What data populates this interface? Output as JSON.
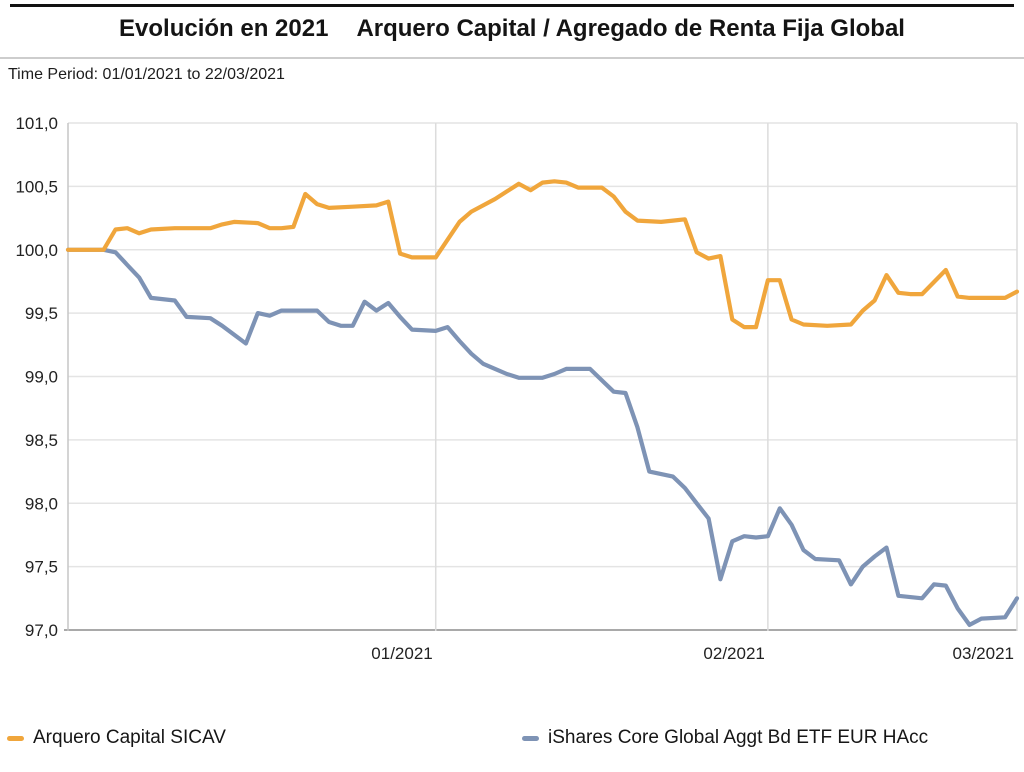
{
  "header": {
    "title_left": "Evolución en 2021",
    "title_right": "Arquero Capital / Agregado de Renta Fija Global"
  },
  "subtitle": {
    "label": "Time Period: 01/01/2021 to 22/03/2021"
  },
  "chart_data": {
    "type": "line",
    "title": "Evolución en 2021  Arquero Capital / Agregado de Renta Fija Global",
    "xlabel": "",
    "ylabel": "",
    "x_start_date": "01/01/2021",
    "x_end_date": "22/03/2021",
    "x_range_days": [
      0,
      80
    ],
    "ylim": [
      97.0,
      101.0
    ],
    "grid": true,
    "legend_position": "bottom",
    "y_ticks": [
      {
        "value": 101.0,
        "label": "101,0"
      },
      {
        "value": 100.5,
        "label": "100,5"
      },
      {
        "value": 100.0,
        "label": "100,0"
      },
      {
        "value": 99.5,
        "label": "99,5"
      },
      {
        "value": 99.0,
        "label": "99,0"
      },
      {
        "value": 98.5,
        "label": "98,5"
      },
      {
        "value": 98.0,
        "label": "98,0"
      },
      {
        "value": 97.5,
        "label": "97,5"
      },
      {
        "value": 97.0,
        "label": "97,0"
      }
    ],
    "x_ticks": [
      {
        "day": 31,
        "label": "01/2021"
      },
      {
        "day": 59,
        "label": "02/2021"
      },
      {
        "day": 80,
        "label": "03/2021"
      }
    ],
    "series": [
      {
        "name": "Arquero Capital SICAV",
        "color": "#F0A63C",
        "points": [
          [
            0,
            100.0
          ],
          [
            3,
            100.0
          ],
          [
            4,
            100.16
          ],
          [
            5,
            100.17
          ],
          [
            6,
            100.13
          ],
          [
            7,
            100.16
          ],
          [
            9,
            100.17
          ],
          [
            12,
            100.17
          ],
          [
            13,
            100.2
          ],
          [
            14,
            100.22
          ],
          [
            16,
            100.21
          ],
          [
            17,
            100.17
          ],
          [
            18,
            100.17
          ],
          [
            19,
            100.18
          ],
          [
            20,
            100.44
          ],
          [
            21,
            100.36
          ],
          [
            22,
            100.33
          ],
          [
            24,
            100.34
          ],
          [
            26,
            100.35
          ],
          [
            27,
            100.38
          ],
          [
            28,
            99.97
          ],
          [
            29,
            99.94
          ],
          [
            31,
            99.94
          ],
          [
            33,
            100.22
          ],
          [
            34,
            100.3
          ],
          [
            36,
            100.4
          ],
          [
            37,
            100.46
          ],
          [
            38,
            100.52
          ],
          [
            39,
            100.47
          ],
          [
            40,
            100.53
          ],
          [
            41,
            100.54
          ],
          [
            42,
            100.53
          ],
          [
            43,
            100.49
          ],
          [
            45,
            100.49
          ],
          [
            46,
            100.42
          ],
          [
            47,
            100.3
          ],
          [
            48,
            100.23
          ],
          [
            50,
            100.22
          ],
          [
            51,
            100.23
          ],
          [
            52,
            100.24
          ],
          [
            53,
            99.98
          ],
          [
            54,
            99.93
          ],
          [
            55,
            99.95
          ],
          [
            56,
            99.45
          ],
          [
            57,
            99.39
          ],
          [
            58,
            99.39
          ],
          [
            59,
            99.76
          ],
          [
            60,
            99.76
          ],
          [
            61,
            99.45
          ],
          [
            62,
            99.41
          ],
          [
            64,
            99.4
          ],
          [
            66,
            99.41
          ],
          [
            67,
            99.52
          ],
          [
            68,
            99.6
          ],
          [
            69,
            99.8
          ],
          [
            70,
            99.66
          ],
          [
            71,
            99.65
          ],
          [
            72,
            99.65
          ],
          [
            74,
            99.84
          ],
          [
            75,
            99.63
          ],
          [
            76,
            99.62
          ],
          [
            79,
            99.62
          ],
          [
            80,
            99.67
          ]
        ]
      },
      {
        "name": "iShares Core Global Aggt Bd ETF EUR HAcc",
        "color": "#7E93B5",
        "points": [
          [
            0,
            100.0
          ],
          [
            3,
            100.0
          ],
          [
            4,
            99.98
          ],
          [
            5,
            99.88
          ],
          [
            6,
            99.78
          ],
          [
            7,
            99.62
          ],
          [
            9,
            99.6
          ],
          [
            10,
            99.47
          ],
          [
            12,
            99.46
          ],
          [
            13,
            99.4
          ],
          [
            14,
            99.33
          ],
          [
            15,
            99.26
          ],
          [
            16,
            99.5
          ],
          [
            17,
            99.48
          ],
          [
            18,
            99.52
          ],
          [
            21,
            99.52
          ],
          [
            22,
            99.43
          ],
          [
            23,
            99.4
          ],
          [
            24,
            99.4
          ],
          [
            25,
            99.59
          ],
          [
            26,
            99.52
          ],
          [
            27,
            99.58
          ],
          [
            28,
            99.47
          ],
          [
            29,
            99.37
          ],
          [
            31,
            99.36
          ],
          [
            32,
            99.39
          ],
          [
            33,
            99.28
          ],
          [
            34,
            99.18
          ],
          [
            35,
            99.1
          ],
          [
            36,
            99.06
          ],
          [
            37,
            99.02
          ],
          [
            38,
            98.99
          ],
          [
            40,
            98.99
          ],
          [
            41,
            99.02
          ],
          [
            42,
            99.06
          ],
          [
            44,
            99.06
          ],
          [
            45,
            98.97
          ],
          [
            46,
            98.88
          ],
          [
            47,
            98.87
          ],
          [
            48,
            98.6
          ],
          [
            49,
            98.25
          ],
          [
            51,
            98.21
          ],
          [
            52,
            98.12
          ],
          [
            53,
            98.0
          ],
          [
            54,
            97.88
          ],
          [
            55,
            97.4
          ],
          [
            56,
            97.7
          ],
          [
            57,
            97.74
          ],
          [
            58,
            97.73
          ],
          [
            59,
            97.74
          ],
          [
            60,
            97.96
          ],
          [
            61,
            97.83
          ],
          [
            62,
            97.63
          ],
          [
            63,
            97.56
          ],
          [
            65,
            97.55
          ],
          [
            66,
            97.36
          ],
          [
            67,
            97.5
          ],
          [
            68,
            97.58
          ],
          [
            69,
            97.65
          ],
          [
            70,
            97.27
          ],
          [
            72,
            97.25
          ],
          [
            73,
            97.36
          ],
          [
            74,
            97.35
          ],
          [
            75,
            97.17
          ],
          [
            76,
            97.04
          ],
          [
            77,
            97.09
          ],
          [
            79,
            97.1
          ],
          [
            80,
            97.25
          ]
        ]
      }
    ],
    "colors": {
      "grid": "#E4E4E4",
      "axis": "#A9A9A9",
      "left_axis": "#C6C6C6",
      "month_grid": "#DCDCDC",
      "tick_text": "#222222"
    }
  }
}
